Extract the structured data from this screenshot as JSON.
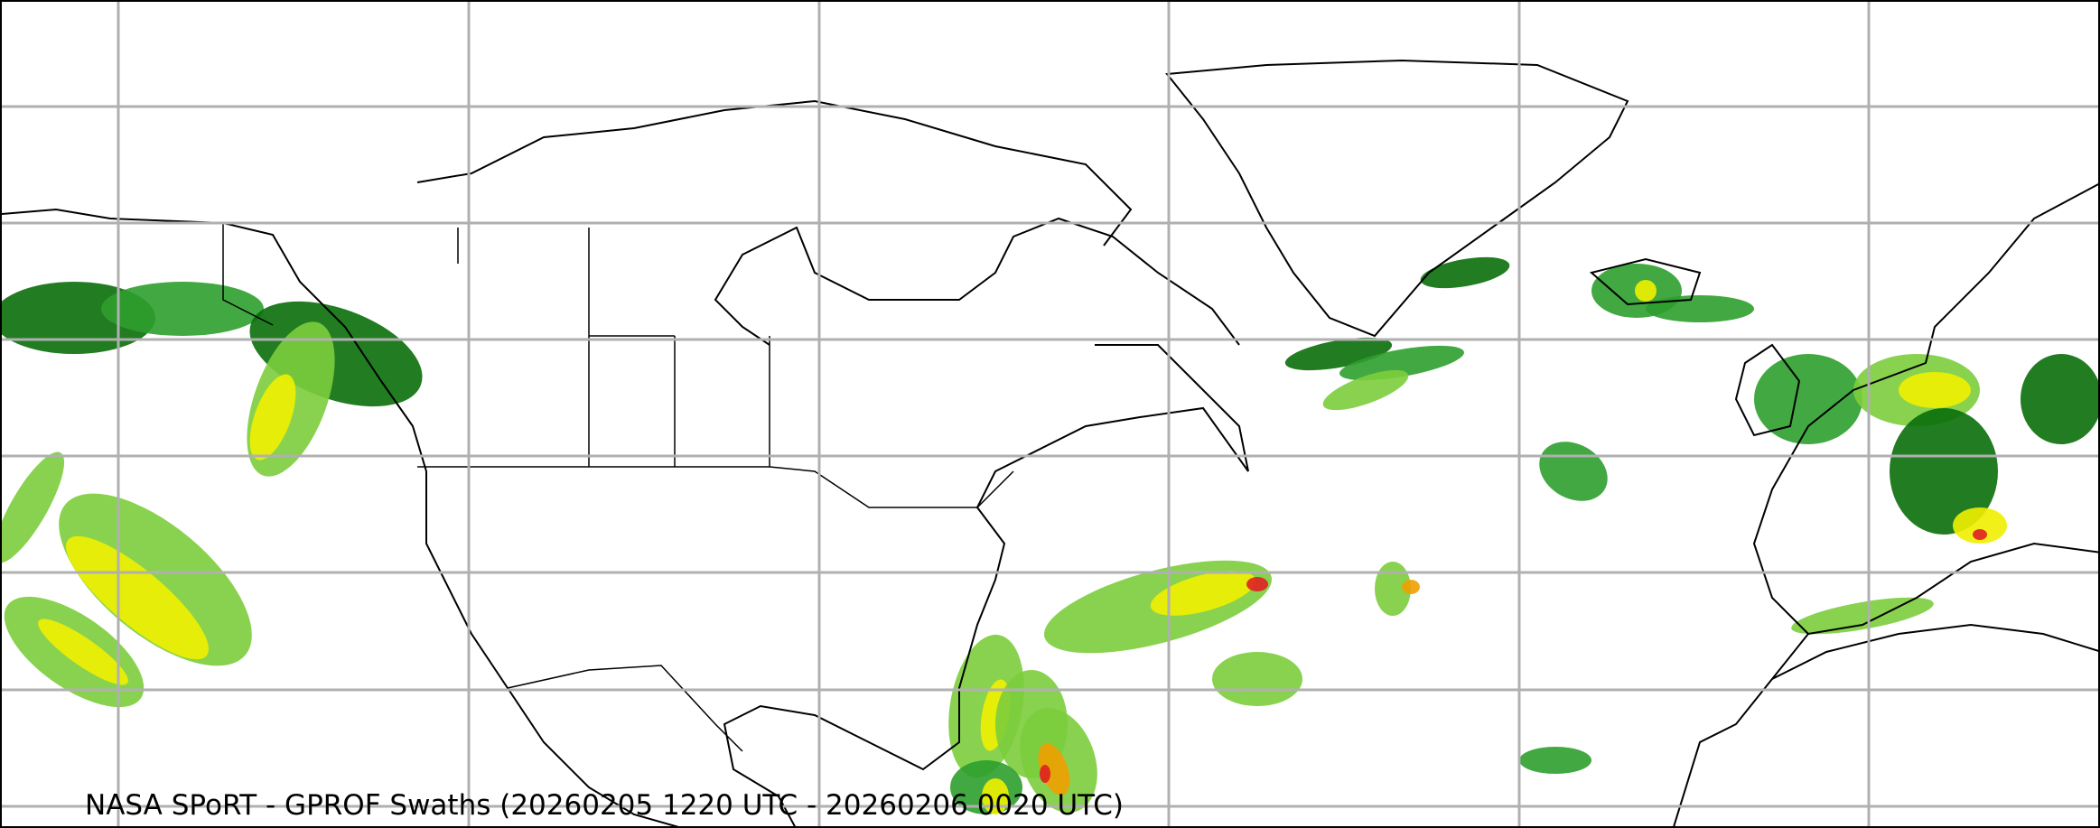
{
  "caption": "NASA SPoRT - GPROF Swaths (20260205 1220 UTC - 20260206 0020 UTC)",
  "colors": {
    "light_green": "#7ccd3c",
    "dark_green": "#0a6e0a",
    "mid_green": "#2e9e2e",
    "yellow": "#f0f000",
    "orange": "#f0a000",
    "red": "#e02020",
    "gridline": "#b0b0b0",
    "coastline": "#000000"
  },
  "map": {
    "region": "North America, North Atlantic, Europe",
    "layers": [
      "precipitation swaths",
      "coastlines",
      "state borders",
      "graticule"
    ]
  }
}
